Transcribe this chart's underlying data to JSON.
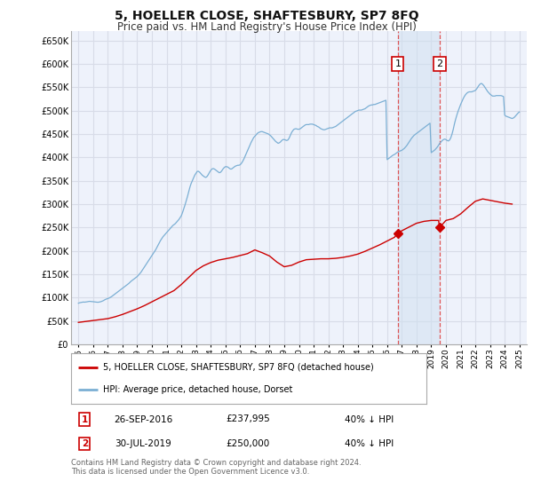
{
  "title": "5, HOELLER CLOSE, SHAFTESBURY, SP7 8FQ",
  "subtitle": "Price paid vs. HM Land Registry's House Price Index (HPI)",
  "title_fontsize": 10,
  "subtitle_fontsize": 8.5,
  "background_color": "#ffffff",
  "plot_bg_color": "#eef2fb",
  "grid_color": "#d8dce8",
  "hpi_color": "#7bafd4",
  "property_color": "#cc0000",
  "shade_color": "#d0e0f0",
  "ylim": [
    0,
    670000
  ],
  "yticks": [
    0,
    50000,
    100000,
    150000,
    200000,
    250000,
    300000,
    350000,
    400000,
    450000,
    500000,
    550000,
    600000,
    650000
  ],
  "sale1_date_num": 2016.73,
  "sale1_price": 237995,
  "sale2_date_num": 2019.57,
  "sale2_price": 250000,
  "legend_property": "5, HOELLER CLOSE, SHAFTESBURY, SP7 8FQ (detached house)",
  "legend_hpi": "HPI: Average price, detached house, Dorset",
  "footnote": "Contains HM Land Registry data © Crown copyright and database right 2024.\nThis data is licensed under the Open Government Licence v3.0.",
  "table_rows": [
    {
      "num": "1",
      "date": "26-SEP-2016",
      "price": "£237,995",
      "change": "40% ↓ HPI"
    },
    {
      "num": "2",
      "date": "30-JUL-2019",
      "price": "£250,000",
      "change": "40% ↓ HPI"
    }
  ],
  "hpi_x": [
    1995.0,
    1995.083,
    1995.167,
    1995.25,
    1995.333,
    1995.417,
    1995.5,
    1995.583,
    1995.667,
    1995.75,
    1995.833,
    1995.917,
    1996.0,
    1996.083,
    1996.167,
    1996.25,
    1996.333,
    1996.417,
    1996.5,
    1996.583,
    1996.667,
    1996.75,
    1996.833,
    1996.917,
    1997.0,
    1997.083,
    1997.167,
    1997.25,
    1997.333,
    1997.417,
    1997.5,
    1997.583,
    1997.667,
    1997.75,
    1997.833,
    1997.917,
    1998.0,
    1998.083,
    1998.167,
    1998.25,
    1998.333,
    1998.417,
    1998.5,
    1998.583,
    1998.667,
    1998.75,
    1998.833,
    1998.917,
    1999.0,
    1999.083,
    1999.167,
    1999.25,
    1999.333,
    1999.417,
    1999.5,
    1999.583,
    1999.667,
    1999.75,
    1999.833,
    1999.917,
    2000.0,
    2000.083,
    2000.167,
    2000.25,
    2000.333,
    2000.417,
    2000.5,
    2000.583,
    2000.667,
    2000.75,
    2000.833,
    2000.917,
    2001.0,
    2001.083,
    2001.167,
    2001.25,
    2001.333,
    2001.417,
    2001.5,
    2001.583,
    2001.667,
    2001.75,
    2001.833,
    2001.917,
    2002.0,
    2002.083,
    2002.167,
    2002.25,
    2002.333,
    2002.417,
    2002.5,
    2002.583,
    2002.667,
    2002.75,
    2002.833,
    2002.917,
    2003.0,
    2003.083,
    2003.167,
    2003.25,
    2003.333,
    2003.417,
    2003.5,
    2003.583,
    2003.667,
    2003.75,
    2003.833,
    2003.917,
    2004.0,
    2004.083,
    2004.167,
    2004.25,
    2004.333,
    2004.417,
    2004.5,
    2004.583,
    2004.667,
    2004.75,
    2004.833,
    2004.917,
    2005.0,
    2005.083,
    2005.167,
    2005.25,
    2005.333,
    2005.417,
    2005.5,
    2005.583,
    2005.667,
    2005.75,
    2005.833,
    2005.917,
    2006.0,
    2006.083,
    2006.167,
    2006.25,
    2006.333,
    2006.417,
    2006.5,
    2006.583,
    2006.667,
    2006.75,
    2006.833,
    2006.917,
    2007.0,
    2007.083,
    2007.167,
    2007.25,
    2007.333,
    2007.417,
    2007.5,
    2007.583,
    2007.667,
    2007.75,
    2007.833,
    2007.917,
    2008.0,
    2008.083,
    2008.167,
    2008.25,
    2008.333,
    2008.417,
    2008.5,
    2008.583,
    2008.667,
    2008.75,
    2008.833,
    2008.917,
    2009.0,
    2009.083,
    2009.167,
    2009.25,
    2009.333,
    2009.417,
    2009.5,
    2009.583,
    2009.667,
    2009.75,
    2009.833,
    2009.917,
    2010.0,
    2010.083,
    2010.167,
    2010.25,
    2010.333,
    2010.417,
    2010.5,
    2010.583,
    2010.667,
    2010.75,
    2010.833,
    2010.917,
    2011.0,
    2011.083,
    2011.167,
    2011.25,
    2011.333,
    2011.417,
    2011.5,
    2011.583,
    2011.667,
    2011.75,
    2011.833,
    2011.917,
    2012.0,
    2012.083,
    2012.167,
    2012.25,
    2012.333,
    2012.417,
    2012.5,
    2012.583,
    2012.667,
    2012.75,
    2012.833,
    2012.917,
    2013.0,
    2013.083,
    2013.167,
    2013.25,
    2013.333,
    2013.417,
    2013.5,
    2013.583,
    2013.667,
    2013.75,
    2013.833,
    2013.917,
    2014.0,
    2014.083,
    2014.167,
    2014.25,
    2014.333,
    2014.417,
    2014.5,
    2014.583,
    2014.667,
    2014.75,
    2014.833,
    2014.917,
    2015.0,
    2015.083,
    2015.167,
    2015.25,
    2015.333,
    2015.417,
    2015.5,
    2015.583,
    2015.667,
    2015.75,
    2015.833,
    2015.917,
    2016.0,
    2016.083,
    2016.167,
    2016.25,
    2016.333,
    2016.417,
    2016.5,
    2016.583,
    2016.667,
    2016.75,
    2016.833,
    2016.917,
    2017.0,
    2017.083,
    2017.167,
    2017.25,
    2017.333,
    2017.417,
    2017.5,
    2017.583,
    2017.667,
    2017.75,
    2017.833,
    2017.917,
    2018.0,
    2018.083,
    2018.167,
    2018.25,
    2018.333,
    2018.417,
    2018.5,
    2018.583,
    2018.667,
    2018.75,
    2018.833,
    2018.917,
    2019.0,
    2019.083,
    2019.167,
    2019.25,
    2019.333,
    2019.417,
    2019.5,
    2019.583,
    2019.667,
    2019.75,
    2019.833,
    2019.917,
    2020.0,
    2020.083,
    2020.167,
    2020.25,
    2020.333,
    2020.417,
    2020.5,
    2020.583,
    2020.667,
    2020.75,
    2020.833,
    2020.917,
    2021.0,
    2021.083,
    2021.167,
    2021.25,
    2021.333,
    2021.417,
    2021.5,
    2021.583,
    2021.667,
    2021.75,
    2021.833,
    2021.917,
    2022.0,
    2022.083,
    2022.167,
    2022.25,
    2022.333,
    2022.417,
    2022.5,
    2022.583,
    2022.667,
    2022.75,
    2022.833,
    2022.917,
    2023.0,
    2023.083,
    2023.167,
    2023.25,
    2023.333,
    2023.417,
    2023.5,
    2023.583,
    2023.667,
    2023.75,
    2023.833,
    2023.917,
    2024.0,
    2024.083,
    2024.167,
    2024.25,
    2024.333,
    2024.417,
    2024.5,
    2024.583,
    2024.667,
    2024.75,
    2024.833,
    2024.917,
    2025.0
  ],
  "hpi_y": [
    88000,
    89000,
    89500,
    90000,
    90500,
    90200,
    90500,
    91000,
    91500,
    92000,
    91800,
    91500,
    91200,
    90800,
    90500,
    90200,
    90000,
    90500,
    91000,
    92000,
    93000,
    94500,
    96000,
    97000,
    98000,
    99000,
    100500,
    102000,
    104000,
    106000,
    108000,
    110000,
    112000,
    114000,
    116000,
    118000,
    120000,
    122000,
    124000,
    126000,
    128000,
    130000,
    132500,
    135000,
    137000,
    139000,
    141000,
    143000,
    145000,
    148000,
    151000,
    154000,
    158000,
    162000,
    166000,
    170000,
    174000,
    178000,
    182000,
    186000,
    190000,
    194000,
    198000,
    202000,
    207000,
    212000,
    217000,
    222000,
    226000,
    230000,
    233000,
    236000,
    239000,
    242000,
    245000,
    248000,
    251000,
    254000,
    256000,
    258000,
    261000,
    264000,
    267000,
    271000,
    275000,
    282000,
    290000,
    298000,
    307000,
    316000,
    326000,
    336000,
    344000,
    350000,
    356000,
    362000,
    366000,
    370000,
    370000,
    368000,
    365000,
    362000,
    360000,
    358000,
    357000,
    359000,
    363000,
    368000,
    372000,
    375000,
    376000,
    375000,
    373000,
    371000,
    369000,
    367000,
    368000,
    371000,
    375000,
    378000,
    380000,
    380000,
    379000,
    377000,
    375000,
    375000,
    377000,
    379000,
    381000,
    382000,
    383000,
    383000,
    384000,
    387000,
    391000,
    396000,
    402000,
    408000,
    414000,
    420000,
    426000,
    432000,
    437000,
    442000,
    445000,
    448000,
    451000,
    453000,
    454000,
    455000,
    455000,
    454000,
    453000,
    452000,
    451000,
    450000,
    448000,
    446000,
    443000,
    440000,
    437000,
    434000,
    432000,
    430000,
    431000,
    433000,
    436000,
    438000,
    438000,
    437000,
    436000,
    437000,
    441000,
    447000,
    453000,
    457000,
    460000,
    461000,
    461000,
    460000,
    460000,
    461000,
    463000,
    465000,
    467000,
    469000,
    470000,
    470000,
    470000,
    471000,
    471000,
    471000,
    470000,
    469000,
    468000,
    466000,
    465000,
    463000,
    461000,
    460000,
    459000,
    459000,
    460000,
    461000,
    462000,
    463000,
    463000,
    463000,
    464000,
    465000,
    466000,
    468000,
    470000,
    472000,
    474000,
    476000,
    478000,
    480000,
    482000,
    484000,
    486000,
    488000,
    490000,
    492000,
    494000,
    496000,
    498000,
    499000,
    500000,
    501000,
    501000,
    501000,
    502000,
    503000,
    504000,
    506000,
    508000,
    510000,
    511000,
    512000,
    512000,
    513000,
    513000,
    514000,
    515000,
    516000,
    517000,
    518000,
    519000,
    520000,
    521000,
    522000,
    395000,
    397000,
    399000,
    401000,
    403000,
    405000,
    406000,
    408000,
    410000,
    412000,
    413000,
    414000,
    415000,
    417000,
    419000,
    422000,
    425000,
    429000,
    433000,
    437000,
    441000,
    444000,
    447000,
    449000,
    451000,
    453000,
    455000,
    457000,
    459000,
    461000,
    463000,
    465000,
    467000,
    469000,
    471000,
    473000,
    410000,
    412000,
    414000,
    416000,
    419000,
    422000,
    426000,
    430000,
    433000,
    436000,
    438000,
    439000,
    438000,
    436000,
    435000,
    437000,
    442000,
    450000,
    460000,
    472000,
    482000,
    491000,
    499000,
    506000,
    513000,
    519000,
    525000,
    530000,
    534000,
    537000,
    539000,
    540000,
    540000,
    540000,
    541000,
    542000,
    543000,
    546000,
    550000,
    554000,
    557000,
    558000,
    556000,
    553000,
    549000,
    545000,
    541000,
    538000,
    535000,
    533000,
    531000,
    531000,
    531000,
    532000,
    532000,
    532000,
    532000,
    532000,
    531000,
    530000,
    490000,
    488000,
    487000,
    486000,
    485000,
    484000,
    483000,
    484000,
    486000,
    489000,
    492000,
    495000,
    497000
  ],
  "prop_x": [
    1995.0,
    1995.5,
    1996.0,
    1996.5,
    1997.0,
    1997.5,
    1998.0,
    1998.5,
    1999.0,
    1999.5,
    2000.0,
    2000.5,
    2001.0,
    2001.5,
    2002.0,
    2002.5,
    2003.0,
    2003.5,
    2004.0,
    2004.5,
    2005.0,
    2005.5,
    2006.0,
    2006.5,
    2007.0,
    2007.5,
    2008.0,
    2008.5,
    2009.0,
    2009.5,
    2010.0,
    2010.5,
    2011.0,
    2011.5,
    2012.0,
    2012.5,
    2013.0,
    2013.5,
    2014.0,
    2014.5,
    2015.0,
    2015.5,
    2016.0,
    2016.5,
    2016.73,
    2017.0,
    2017.5,
    2018.0,
    2018.5,
    2019.0,
    2019.5,
    2019.57,
    2020.0,
    2020.5,
    2021.0,
    2021.5,
    2022.0,
    2022.5,
    2023.0,
    2023.5,
    2024.0,
    2024.5
  ],
  "prop_y": [
    47000,
    49000,
    51000,
    53000,
    55000,
    59000,
    64000,
    70000,
    76000,
    83000,
    91000,
    99000,
    107000,
    115000,
    128000,
    143000,
    158000,
    168000,
    175000,
    180000,
    183000,
    186000,
    190000,
    194000,
    202000,
    196000,
    189000,
    176000,
    166000,
    169000,
    176000,
    181000,
    182000,
    183000,
    183000,
    184000,
    186000,
    189000,
    193000,
    199000,
    206000,
    213000,
    221000,
    229000,
    237995,
    243000,
    251000,
    259000,
    263000,
    265000,
    265000,
    250000,
    265000,
    269000,
    279000,
    293000,
    306000,
    311000,
    308000,
    305000,
    302000,
    300000
  ]
}
